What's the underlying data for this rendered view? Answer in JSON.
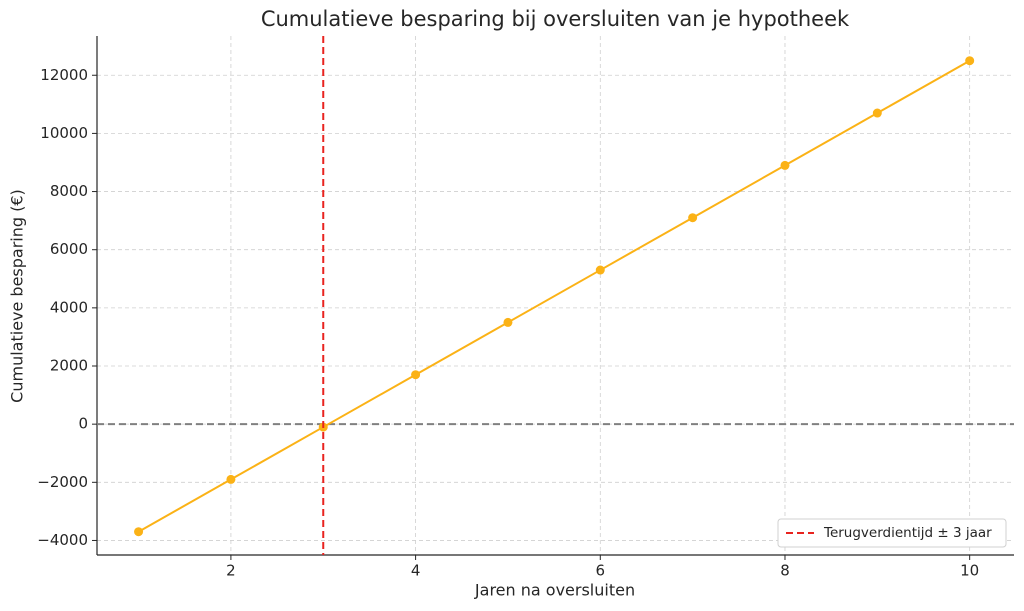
{
  "chart_data": {
    "type": "line",
    "title": "Cumulatieve besparing bij oversluiten van je hypotheek",
    "x_label": "Jaren na oversluiten",
    "y_label": "Cumulatieve besparing (€)",
    "x": [
      1,
      2,
      3,
      4,
      5,
      6,
      7,
      8,
      9,
      10
    ],
    "series": [
      {
        "color": "#fbb216",
        "values": [
          -3700,
          -1900,
          -100,
          1700,
          3500,
          5300,
          7100,
          8900,
          10700,
          12500
        ]
      }
    ],
    "vlines": [
      {
        "x": 3,
        "color": "#e8231f",
        "name": "Terugverdientijd ± 3 jaar"
      }
    ],
    "hlines": [
      {
        "y": 0,
        "color": "#808080"
      }
    ],
    "xlim": [
      0.55,
      10.48
    ],
    "xticks": [
      2,
      4,
      6,
      8,
      10
    ],
    "ylim": [
      -4500,
      13350
    ],
    "yticks": [
      {
        "value": -4000,
        "label": "−4000"
      },
      {
        "value": -2000,
        "label": "−2000"
      },
      0,
      2000,
      4000,
      6000,
      8000,
      10000,
      12000
    ],
    "grid": true,
    "legend": "lower right"
  }
}
